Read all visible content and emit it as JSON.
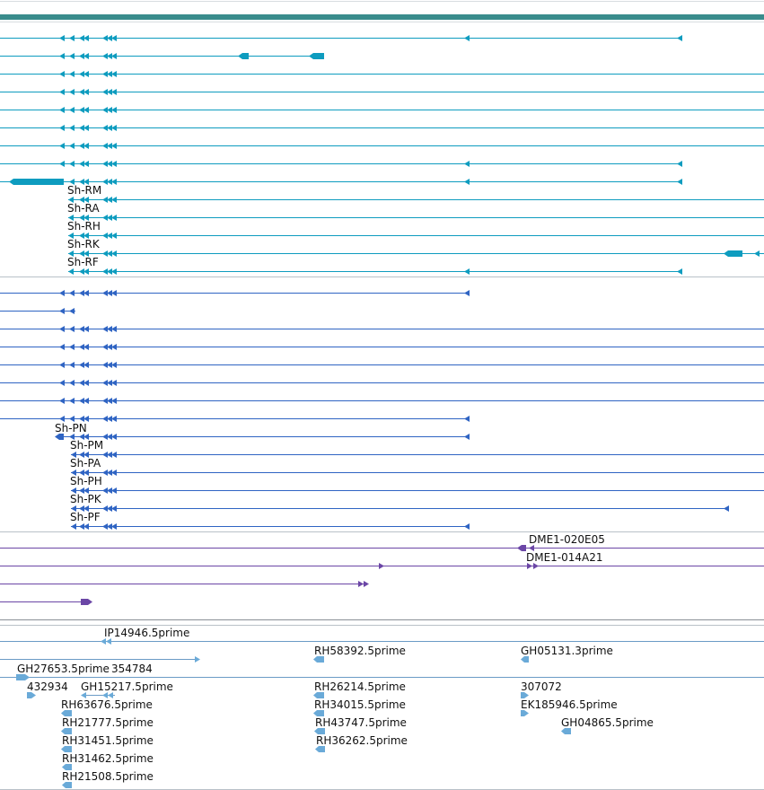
{
  "colors": {
    "transcript_teal": "#0e9cbf",
    "exon_teal": "#1aa7c8",
    "protein_blue": "#2f64c3",
    "fosmid_purple": "#6b46a6",
    "est_blue": "#6aaad8",
    "est_line": "#6b9bc6",
    "divider": "#b9c1c8",
    "header_bar": "#3a8c8c"
  },
  "transcript_labels": [
    "Sh-RM",
    "Sh-RA",
    "Sh-RH",
    "Sh-RK",
    "Sh-RF"
  ],
  "protein_labels": [
    "Sh-PN",
    "Sh-PM",
    "Sh-PA",
    "Sh-PH",
    "Sh-PK",
    "Sh-PF"
  ],
  "fosmid_labels": [
    "DME1-020E05",
    "DME1-014A21"
  ],
  "est_labels": [
    "IP14946.5prime",
    "RH58392.5prime",
    "GH05131.3prime",
    "GH27653.5prime",
    "354784",
    "432934",
    "GH15217.5prime",
    "RH26214.5prime",
    "307072",
    "RH63676.5prime",
    "RH34015.5prime",
    "EK185946.5prime",
    "RH21777.5prime",
    "RH43747.5prime",
    "GH04865.5prime",
    "RH31451.5prime",
    "RH36262.5prime",
    "RH31462.5prime",
    "RH21508.5prime"
  ]
}
